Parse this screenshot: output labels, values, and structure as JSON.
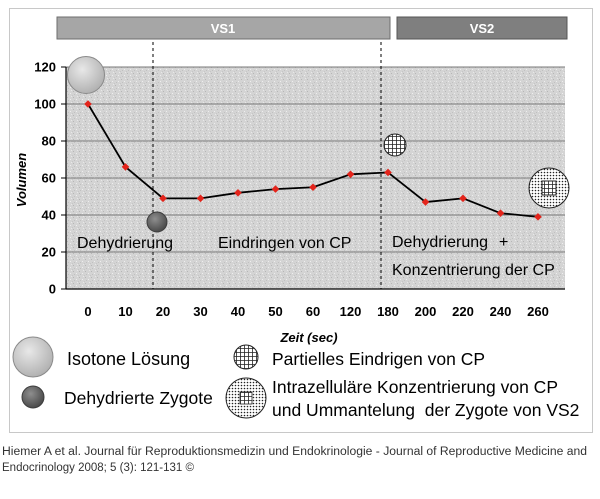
{
  "phase_bars": [
    {
      "label": "VS1",
      "color": "#a6a6a6"
    },
    {
      "label": "VS2",
      "color": "#7f7f7f"
    }
  ],
  "chart_data": {
    "type": "line",
    "categories": [
      "0",
      "10",
      "20",
      "30",
      "40",
      "50",
      "60",
      "120",
      "180",
      "200",
      "220",
      "240",
      "260"
    ],
    "values": [
      100,
      66,
      49,
      49,
      52,
      54,
      55,
      62,
      63,
      47,
      49,
      41,
      39
    ],
    "xlabel": "Zeit (sec)",
    "ylabel": "Volumen",
    "ylim": [
      0,
      120
    ],
    "yticks": [
      0,
      20,
      40,
      60,
      80,
      100,
      120
    ],
    "grid": true,
    "line_color": "#000000",
    "marker": "diamond",
    "marker_color": "#e3241b",
    "annotations": {
      "phase1": "Dehydrierung",
      "phase2": "Eindringen von CP",
      "phase3_line1": "Dehydrierung",
      "phase3_plus": "+",
      "phase3_line2": "Konzentrierung der CP"
    }
  },
  "legend": [
    {
      "icon": "isotonic-cell-icon",
      "label": "Isotone Lösung"
    },
    {
      "icon": "dehydrated-zygote-icon",
      "label": "Dehydrierte Zygote"
    },
    {
      "icon": "partial-cp-penetration-icon",
      "label": "Partielles Eindrigen von CP"
    },
    {
      "icon": "intracellular-cp-concentration-icon",
      "lines": [
        "Intrazelluläre Konzentrierung von CP",
        "und Ummantelung  der Zygote von VS2"
      ]
    }
  ],
  "citation": {
    "line1": "Hiemer A et al. Journal für Reproduktionsmedizin und Endokrinologie - Journal of Reproductive Medicine and",
    "line2": "Endocrinology 2008; 5 (3): 121-131 ©"
  }
}
